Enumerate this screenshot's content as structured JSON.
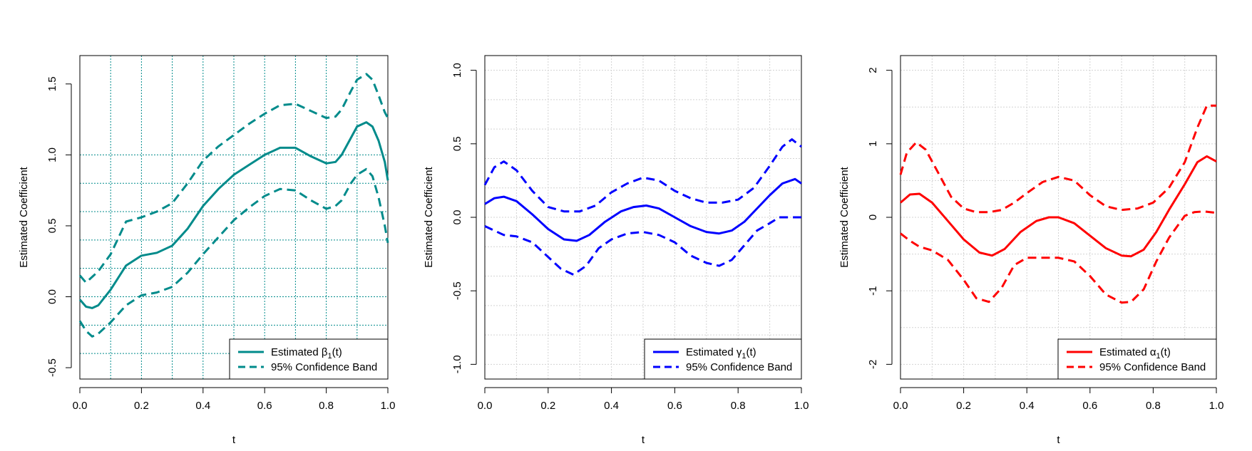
{
  "chart_data": [
    {
      "type": "line",
      "title": "",
      "xlabel": "t",
      "ylabel": "Estimated Coefficient",
      "xlim": [
        0,
        1
      ],
      "ylim": [
        -0.58,
        1.7
      ],
      "xticks": [
        "0.0",
        "0.2",
        "0.4",
        "0.6",
        "0.8",
        "1.0"
      ],
      "xtick_values": [
        0,
        0.2,
        0.4,
        0.6,
        0.8,
        1.0
      ],
      "yticks": [
        "-0.5",
        "0.0",
        "0.5",
        "1.0",
        "1.5"
      ],
      "ytick_values": [
        -0.5,
        0,
        0.5,
        1.0,
        1.5
      ],
      "grid": true,
      "grid_style": "dotted",
      "grid_color": "#008b8b",
      "grid_x": [
        0,
        0.1,
        0.2,
        0.3,
        0.4,
        0.5,
        0.6,
        0.7,
        0.8,
        0.9,
        1.0
      ],
      "grid_y": [
        -0.4,
        -0.2,
        0,
        0.2,
        0.4,
        0.6,
        0.8,
        1.0
      ],
      "color": "#008b8b",
      "legend_position": "bottom-right",
      "legend": [
        {
          "base": "Estimated β",
          "sub": "1",
          "suffix": "(t)",
          "style": "solid"
        },
        {
          "base": "95% Confidence Band",
          "sub": "",
          "suffix": "",
          "style": "dashed"
        }
      ],
      "series": [
        {
          "style": "solid",
          "x": [
            0,
            0.02,
            0.04,
            0.06,
            0.1,
            0.15,
            0.2,
            0.25,
            0.3,
            0.35,
            0.4,
            0.45,
            0.5,
            0.55,
            0.6,
            0.65,
            0.7,
            0.75,
            0.8,
            0.83,
            0.85,
            0.88,
            0.9,
            0.93,
            0.95,
            0.97,
            0.99,
            1.0
          ],
          "y": [
            -0.02,
            -0.07,
            -0.08,
            -0.06,
            0.05,
            0.22,
            0.29,
            0.31,
            0.36,
            0.48,
            0.64,
            0.76,
            0.86,
            0.93,
            1.0,
            1.05,
            1.05,
            0.99,
            0.94,
            0.95,
            1.0,
            1.12,
            1.2,
            1.23,
            1.2,
            1.1,
            0.95,
            0.82
          ]
        },
        {
          "style": "dashed",
          "x": [
            0,
            0.02,
            0.04,
            0.06,
            0.1,
            0.15,
            0.2,
            0.25,
            0.3,
            0.35,
            0.4,
            0.45,
            0.5,
            0.55,
            0.6,
            0.65,
            0.7,
            0.75,
            0.8,
            0.83,
            0.85,
            0.88,
            0.9,
            0.93,
            0.95,
            0.97,
            0.99,
            1.0
          ],
          "y": [
            0.15,
            0.1,
            0.14,
            0.18,
            0.3,
            0.53,
            0.56,
            0.6,
            0.66,
            0.8,
            0.96,
            1.06,
            1.14,
            1.22,
            1.29,
            1.35,
            1.36,
            1.31,
            1.26,
            1.27,
            1.32,
            1.45,
            1.53,
            1.57,
            1.53,
            1.42,
            1.3,
            1.26
          ]
        },
        {
          "style": "dashed",
          "x": [
            0,
            0.02,
            0.04,
            0.06,
            0.1,
            0.15,
            0.2,
            0.25,
            0.3,
            0.35,
            0.4,
            0.45,
            0.5,
            0.55,
            0.6,
            0.65,
            0.7,
            0.75,
            0.8,
            0.83,
            0.85,
            0.88,
            0.9,
            0.93,
            0.95,
            0.97,
            0.99,
            1.0
          ],
          "y": [
            -0.17,
            -0.24,
            -0.28,
            -0.26,
            -0.18,
            -0.06,
            0.01,
            0.03,
            0.07,
            0.17,
            0.3,
            0.42,
            0.54,
            0.63,
            0.71,
            0.76,
            0.75,
            0.68,
            0.62,
            0.64,
            0.68,
            0.8,
            0.86,
            0.9,
            0.85,
            0.7,
            0.5,
            0.38
          ]
        }
      ]
    },
    {
      "type": "line",
      "title": "",
      "xlabel": "t",
      "ylabel": "Estimated Coefficient",
      "xlim": [
        0,
        1
      ],
      "ylim": [
        -1.1,
        1.1
      ],
      "xticks": [
        "0.0",
        "0.2",
        "0.4",
        "0.6",
        "0.8",
        "1.0"
      ],
      "xtick_values": [
        0,
        0.2,
        0.4,
        0.6,
        0.8,
        1.0
      ],
      "yticks": [
        "-1.0",
        "-0.5",
        "0.0",
        "0.5",
        "1.0"
      ],
      "ytick_values": [
        -1.0,
        -0.5,
        0,
        0.5,
        1.0
      ],
      "grid": true,
      "grid_style": "dotted",
      "grid_color": "#d3d3d3",
      "grid_x": [
        0,
        0.1,
        0.2,
        0.3,
        0.4,
        0.5,
        0.6,
        0.7,
        0.8,
        0.9,
        1.0
      ],
      "grid_y": [
        -1.0,
        -0.8,
        -0.6,
        -0.4,
        -0.2,
        0,
        0.2,
        0.4,
        0.6,
        0.8,
        1.0
      ],
      "color": "#0000ff",
      "legend_position": "bottom-right",
      "legend": [
        {
          "base": "Estimated γ",
          "sub": "1",
          "suffix": "(t)",
          "style": "solid"
        },
        {
          "base": "95% Confidence Band",
          "sub": "",
          "suffix": "",
          "style": "dashed"
        }
      ],
      "series": [
        {
          "style": "solid",
          "x": [
            0,
            0.03,
            0.06,
            0.1,
            0.15,
            0.2,
            0.25,
            0.29,
            0.33,
            0.38,
            0.43,
            0.47,
            0.51,
            0.55,
            0.6,
            0.65,
            0.7,
            0.74,
            0.78,
            0.82,
            0.86,
            0.9,
            0.94,
            0.98,
            1.0
          ],
          "y": [
            0.09,
            0.13,
            0.14,
            0.11,
            0.02,
            -0.08,
            -0.15,
            -0.16,
            -0.12,
            -0.03,
            0.04,
            0.07,
            0.08,
            0.06,
            0.0,
            -0.06,
            -0.1,
            -0.11,
            -0.09,
            -0.03,
            0.06,
            0.15,
            0.23,
            0.26,
            0.23
          ]
        },
        {
          "style": "dashed",
          "x": [
            0,
            0.03,
            0.06,
            0.1,
            0.15,
            0.2,
            0.25,
            0.3,
            0.35,
            0.4,
            0.45,
            0.5,
            0.55,
            0.6,
            0.65,
            0.7,
            0.75,
            0.8,
            0.85,
            0.9,
            0.94,
            0.97,
            1.0
          ],
          "y": [
            0.22,
            0.34,
            0.38,
            0.32,
            0.18,
            0.07,
            0.04,
            0.04,
            0.08,
            0.17,
            0.23,
            0.27,
            0.25,
            0.18,
            0.13,
            0.1,
            0.1,
            0.12,
            0.2,
            0.35,
            0.48,
            0.53,
            0.48
          ]
        },
        {
          "style": "dashed",
          "x": [
            0,
            0.03,
            0.06,
            0.1,
            0.15,
            0.2,
            0.24,
            0.28,
            0.32,
            0.36,
            0.4,
            0.45,
            0.5,
            0.55,
            0.6,
            0.65,
            0.7,
            0.74,
            0.78,
            0.82,
            0.86,
            0.9,
            0.93,
            0.96,
            1.0
          ],
          "y": [
            -0.06,
            -0.09,
            -0.12,
            -0.13,
            -0.17,
            -0.27,
            -0.35,
            -0.39,
            -0.33,
            -0.21,
            -0.15,
            -0.11,
            -0.1,
            -0.12,
            -0.17,
            -0.26,
            -0.31,
            -0.33,
            -0.29,
            -0.19,
            -0.09,
            -0.04,
            0.0,
            0.0,
            0.0
          ]
        }
      ]
    },
    {
      "type": "line",
      "title": "",
      "xlabel": "t",
      "ylabel": "Estimated Coefficient",
      "xlim": [
        0,
        1
      ],
      "ylim": [
        -2.2,
        2.2
      ],
      "xticks": [
        "0.0",
        "0.2",
        "0.4",
        "0.6",
        "0.8",
        "1.0"
      ],
      "xtick_values": [
        0,
        0.2,
        0.4,
        0.6,
        0.8,
        1.0
      ],
      "yticks": [
        "-2",
        "-1",
        "0",
        "1",
        "2"
      ],
      "ytick_values": [
        -2,
        -1,
        0,
        1,
        2
      ],
      "grid": true,
      "grid_style": "dotted",
      "grid_color": "#d3d3d3",
      "grid_x": [
        0,
        0.1,
        0.2,
        0.3,
        0.4,
        0.5,
        0.6,
        0.7,
        0.8,
        0.9,
        1.0
      ],
      "grid_y": [
        -2,
        -1.5,
        -1,
        -0.5,
        0,
        0.5,
        1,
        1.5,
        2
      ],
      "color": "#ff0000",
      "legend_position": "bottom-right",
      "legend": [
        {
          "base": "Estimated α",
          "sub": "1",
          "suffix": "(t)",
          "style": "solid"
        },
        {
          "base": "95% Confidence Band",
          "sub": "",
          "suffix": "",
          "style": "dashed"
        }
      ],
      "series": [
        {
          "style": "solid",
          "x": [
            0,
            0.03,
            0.06,
            0.1,
            0.15,
            0.2,
            0.25,
            0.29,
            0.33,
            0.38,
            0.43,
            0.47,
            0.5,
            0.55,
            0.6,
            0.65,
            0.7,
            0.73,
            0.77,
            0.81,
            0.85,
            0.9,
            0.94,
            0.97,
            1.0
          ],
          "y": [
            0.2,
            0.31,
            0.32,
            0.2,
            -0.05,
            -0.3,
            -0.48,
            -0.52,
            -0.43,
            -0.2,
            -0.05,
            0.0,
            0.0,
            -0.08,
            -0.25,
            -0.42,
            -0.52,
            -0.53,
            -0.44,
            -0.2,
            0.1,
            0.45,
            0.75,
            0.83,
            0.76
          ]
        },
        {
          "style": "dashed",
          "x": [
            0,
            0.02,
            0.05,
            0.08,
            0.12,
            0.16,
            0.2,
            0.24,
            0.28,
            0.32,
            0.36,
            0.4,
            0.45,
            0.5,
            0.55,
            0.6,
            0.65,
            0.7,
            0.75,
            0.8,
            0.85,
            0.9,
            0.94,
            0.97,
            1.0
          ],
          "y": [
            0.58,
            0.88,
            1.02,
            0.92,
            0.6,
            0.28,
            0.12,
            0.07,
            0.07,
            0.1,
            0.2,
            0.33,
            0.48,
            0.55,
            0.5,
            0.3,
            0.15,
            0.1,
            0.12,
            0.2,
            0.4,
            0.75,
            1.22,
            1.52,
            1.52
          ]
        },
        {
          "style": "dashed",
          "x": [
            0,
            0.03,
            0.06,
            0.1,
            0.15,
            0.2,
            0.24,
            0.28,
            0.32,
            0.36,
            0.4,
            0.45,
            0.5,
            0.55,
            0.6,
            0.65,
            0.7,
            0.73,
            0.77,
            0.81,
            0.85,
            0.9,
            0.93,
            0.96,
            1.0
          ],
          "y": [
            -0.22,
            -0.32,
            -0.4,
            -0.45,
            -0.58,
            -0.85,
            -1.1,
            -1.15,
            -0.96,
            -0.65,
            -0.55,
            -0.55,
            -0.55,
            -0.6,
            -0.8,
            -1.05,
            -1.16,
            -1.15,
            -0.98,
            -0.6,
            -0.28,
            0.02,
            0.07,
            0.08,
            0.06
          ]
        }
      ]
    }
  ]
}
